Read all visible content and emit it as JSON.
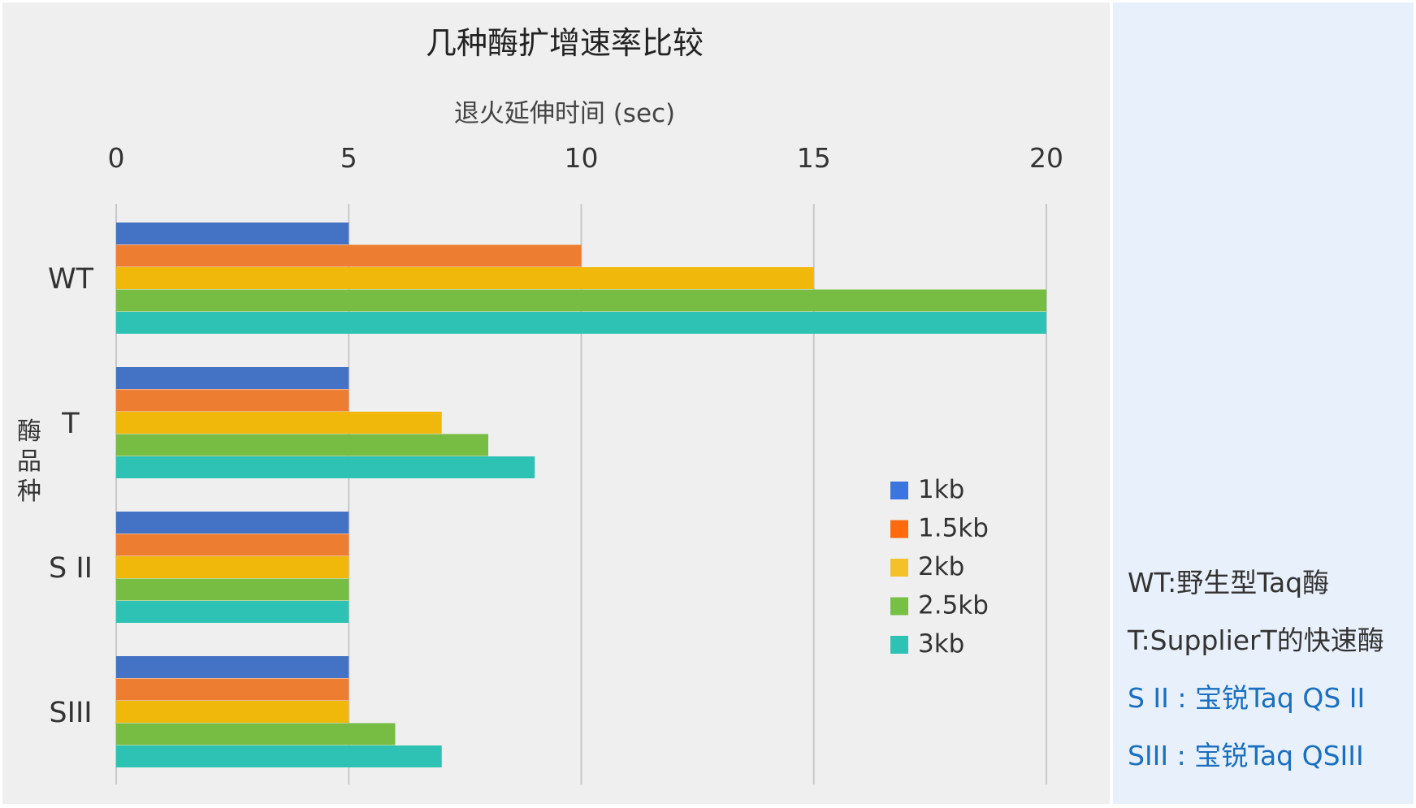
{
  "chart_data": {
    "type": "bar",
    "orientation": "horizontal",
    "title": "几种酶扩增速率比较",
    "xlabel": "退火延伸时间 (sec)",
    "ylabel": "酶品种",
    "xlim": [
      0,
      20
    ],
    "xticks": [
      "0",
      "5",
      "10",
      "15",
      "20"
    ],
    "grid": "vertical",
    "legend_position": "right-lower",
    "categories": [
      "WT",
      "T",
      "S II",
      "SIII"
    ],
    "series": [
      {
        "name": "1kb",
        "color": "#4472c4",
        "legend_color": "#3b75e0",
        "values": [
          5,
          5,
          5,
          5
        ]
      },
      {
        "name": "1.5kb",
        "color": "#ed7d31",
        "legend_color": "#ff6a0d",
        "values": [
          10,
          5,
          5,
          5
        ]
      },
      {
        "name": "2kb",
        "color": "#f1b80c",
        "legend_color": "#f5c12b",
        "values": [
          15,
          7,
          5,
          5
        ]
      },
      {
        "name": "2.5kb",
        "color": "#77bc43",
        "legend_color": "#76c143",
        "values": [
          20,
          8,
          5,
          6
        ]
      },
      {
        "name": "3kb",
        "color": "#2ec2b4",
        "legend_color": "#2ec2b4",
        "values": [
          20,
          9,
          5,
          7
        ]
      }
    ]
  },
  "notes": [
    {
      "text": "WT:野生型Taq酶",
      "color": "#333333"
    },
    {
      "text": "T:SupplierT的快速酶",
      "color": "#333333"
    },
    {
      "text": "S II : 宝锐Taq QS II",
      "color": "#1a6fbf"
    },
    {
      "text": "SIII : 宝锐Taq QSIII",
      "color": "#1a6fbf"
    }
  ]
}
